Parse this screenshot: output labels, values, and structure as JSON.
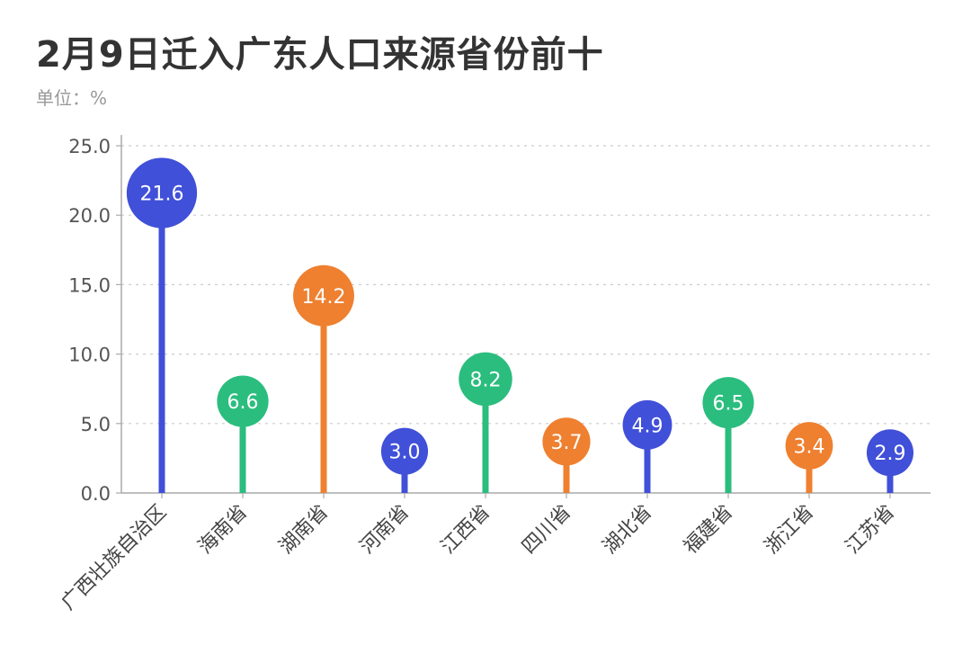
{
  "title": "2月9日迁入广东人口来源省份前十",
  "unit_label": "单位：%",
  "colors": {
    "blue": "#4050d8",
    "green": "#2bbd7e",
    "orange": "#ee8030",
    "axis": "#aaaaaa",
    "grid": "#cccccc",
    "tick_text": "#555555"
  },
  "chart_data": {
    "type": "lollipop",
    "title": "2月9日迁入广东人口来源省份前十",
    "ylabel": "单位：%",
    "ylim": [
      0,
      25
    ],
    "yticks": [
      "0.0",
      "5.0",
      "10.0",
      "15.0",
      "20.0",
      "25.0"
    ],
    "grid": true,
    "categories": [
      "广西壮族自治区",
      "海南省",
      "湖南省",
      "河南省",
      "江西省",
      "四川省",
      "湖北省",
      "福建省",
      "浙江省",
      "江苏省"
    ],
    "values": [
      21.6,
      6.6,
      14.2,
      3.0,
      8.2,
      3.7,
      4.9,
      6.5,
      3.4,
      2.9
    ],
    "labels": [
      "21.6",
      "6.6",
      "14.2",
      "3.0",
      "8.2",
      "3.7",
      "4.9",
      "6.5",
      "3.4",
      "2.9"
    ],
    "point_colors": [
      "blue",
      "green",
      "orange",
      "blue",
      "green",
      "orange",
      "blue",
      "green",
      "orange",
      "blue"
    ]
  }
}
